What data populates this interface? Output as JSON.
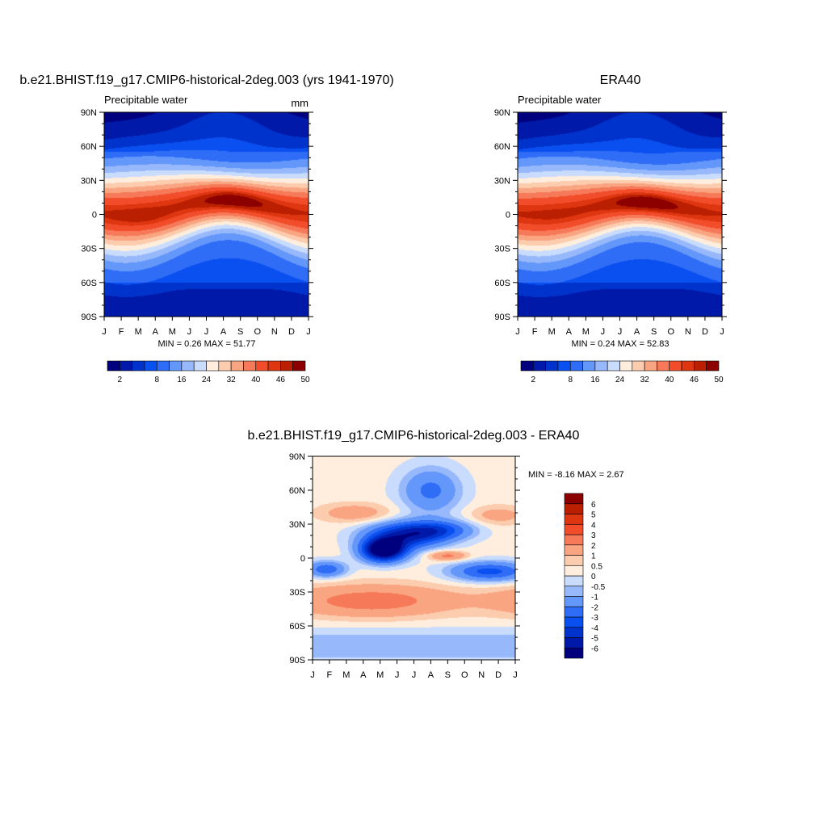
{
  "chart_data": [
    {
      "type": "heatmap",
      "title": "b.e21.BHIST.f19_g17.CMIP6-historical-2deg.003 (yrs 1941-1970)",
      "left_label": "Precipitable water",
      "units": "mm",
      "min_max_text": "MIN =   0.26 MAX =  51.77",
      "x_ticks": [
        "J",
        "F",
        "M",
        "A",
        "M",
        "J",
        "J",
        "A",
        "S",
        "O",
        "N",
        "D",
        "J"
      ],
      "y_ticks": [
        "90N",
        "60N",
        "30N",
        "0",
        "30S",
        "60S",
        "90S"
      ],
      "y_range": [
        -90,
        90
      ],
      "field": {
        "min": 0.26,
        "max": 51.77,
        "peak_lat": 7,
        "peak_month": 7.5,
        "peak_swing": 14,
        "south_extra": 2
      },
      "colorbar": {
        "labels": [
          "2",
          "8",
          "16",
          "24",
          "32",
          "40",
          "46",
          "50"
        ],
        "levels": [
          2,
          4,
          6,
          8,
          12,
          16,
          20,
          24,
          28,
          32,
          36,
          40,
          44,
          46,
          48,
          50
        ],
        "colors": [
          "#00007f",
          "#0019a8",
          "#0033cc",
          "#0a4ff0",
          "#2f6df7",
          "#6497fa",
          "#97b9fb",
          "#c9dcfd",
          "#ffeedd",
          "#fcccae",
          "#f9a582",
          "#f67a59",
          "#f24d2b",
          "#de3611",
          "#b91f00",
          "#8c0000"
        ]
      }
    },
    {
      "type": "heatmap",
      "title": "ERA40",
      "left_label": "Precipitable water",
      "min_max_text": "MIN =   0.24 MAX =  52.83",
      "x_ticks": [
        "J",
        "F",
        "M",
        "A",
        "M",
        "J",
        "J",
        "A",
        "S",
        "O",
        "N",
        "D",
        "J"
      ],
      "y_ticks": [
        "90N",
        "60N",
        "30N",
        "0",
        "30S",
        "60S",
        "90S"
      ],
      "y_range": [
        -90,
        90
      ],
      "field": {
        "min": 0.24,
        "max": 52.83,
        "peak_lat": 6,
        "peak_month": 7.5,
        "peak_swing": 12,
        "south_extra": 1
      },
      "colorbar": {
        "labels": [
          "2",
          "8",
          "16",
          "24",
          "32",
          "40",
          "46",
          "50"
        ],
        "levels": [
          2,
          4,
          6,
          8,
          12,
          16,
          20,
          24,
          28,
          32,
          36,
          40,
          44,
          46,
          48,
          50
        ],
        "colors": [
          "#00007f",
          "#0019a8",
          "#0033cc",
          "#0a4ff0",
          "#2f6df7",
          "#6497fa",
          "#97b9fb",
          "#c9dcfd",
          "#ffeedd",
          "#fcccae",
          "#f9a582",
          "#f67a59",
          "#f24d2b",
          "#de3611",
          "#b91f00",
          "#8c0000"
        ]
      }
    },
    {
      "type": "heatmap",
      "title": "b.e21.BHIST.f19_g17.CMIP6-historical-2deg.003 - ERA40",
      "min_max_text": "MIN =  -8.16 MAX =   2.67",
      "x_ticks": [
        "J",
        "F",
        "M",
        "A",
        "M",
        "J",
        "J",
        "A",
        "S",
        "O",
        "N",
        "D",
        "J"
      ],
      "y_ticks": [
        "90N",
        "60N",
        "30N",
        "0",
        "30S",
        "60S",
        "90S"
      ],
      "y_range": [
        -90,
        90
      ],
      "field": {
        "min": -8.16,
        "max": 2.67
      },
      "colorbar": {
        "labels": [
          "-6",
          "-5",
          "-4",
          "-3",
          "-2",
          "-1",
          "-0.5",
          "0",
          "0.5",
          "1",
          "2",
          "3",
          "4",
          "5",
          "6"
        ],
        "levels": [
          -6,
          -5,
          -4,
          -3,
          -2,
          -1,
          -0.5,
          0,
          0.5,
          1,
          2,
          3,
          4,
          5,
          6
        ],
        "colors": [
          "#00007f",
          "#0019a8",
          "#0033cc",
          "#0a4ff0",
          "#2f6df7",
          "#6497fa",
          "#97b9fb",
          "#c9dcfd",
          "#ffeedd",
          "#fcccae",
          "#f9a582",
          "#f67a59",
          "#f24d2b",
          "#de3611",
          "#b91f00",
          "#8c0000"
        ]
      }
    }
  ]
}
